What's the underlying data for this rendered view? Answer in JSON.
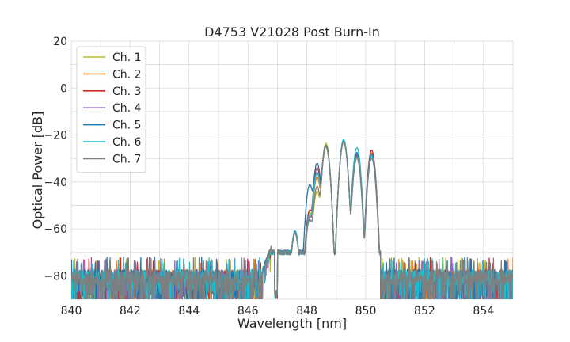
{
  "chart_data": {
    "type": "line",
    "title": "D4753 V21028 Post Burn-In",
    "xlabel": "Wavelength [nm]",
    "ylabel": "Optical Power [dB]",
    "xlim": [
      840,
      855
    ],
    "ylim": [
      -90,
      20
    ],
    "xticks": [
      840,
      842,
      844,
      846,
      848,
      850,
      852,
      854
    ],
    "yticks": [
      -80,
      -60,
      -40,
      -20,
      0,
      20
    ],
    "xtick_labels": [
      "840",
      "842",
      "844",
      "846",
      "848",
      "850",
      "852",
      "854"
    ],
    "ytick_labels": [
      "−80",
      "−60",
      "−40",
      "−20",
      "0",
      "20"
    ],
    "grid": true,
    "legend_position": "upper-left",
    "noise_floor_db": -80,
    "passband_nm": [
      846.8,
      850.5
    ],
    "series": [
      {
        "name": "Ch. 1",
        "color": "#bcbd22",
        "peaks": [
          {
            "x": 847.6,
            "y": -61
          },
          {
            "x": 848.1,
            "y": -53
          },
          {
            "x": 848.35,
            "y": -44
          },
          {
            "x": 848.65,
            "y": -23.5
          },
          {
            "x": 849.25,
            "y": -23
          },
          {
            "x": 849.7,
            "y": -30
          },
          {
            "x": 850.2,
            "y": -29
          }
        ]
      },
      {
        "name": "Ch. 2",
        "color": "#ff7f0e",
        "peaks": [
          {
            "x": 847.6,
            "y": -61.5
          },
          {
            "x": 848.1,
            "y": -54
          },
          {
            "x": 848.35,
            "y": -38
          },
          {
            "x": 848.65,
            "y": -24.5
          },
          {
            "x": 849.25,
            "y": -22.5
          },
          {
            "x": 849.7,
            "y": -29
          },
          {
            "x": 850.2,
            "y": -27.5
          }
        ]
      },
      {
        "name": "Ch. 3",
        "color": "#d62728",
        "peaks": [
          {
            "x": 847.6,
            "y": -61.5
          },
          {
            "x": 848.1,
            "y": -52
          },
          {
            "x": 848.35,
            "y": -34
          },
          {
            "x": 848.65,
            "y": -25
          },
          {
            "x": 849.25,
            "y": -22.5
          },
          {
            "x": 849.7,
            "y": -28.5
          },
          {
            "x": 850.2,
            "y": -26.5
          }
        ]
      },
      {
        "name": "Ch. 4",
        "color": "#9467bd",
        "peaks": [
          {
            "x": 847.6,
            "y": -62
          },
          {
            "x": 848.1,
            "y": -55
          },
          {
            "x": 848.35,
            "y": -36
          },
          {
            "x": 848.65,
            "y": -25
          },
          {
            "x": 849.25,
            "y": -23
          },
          {
            "x": 849.7,
            "y": -29.5
          },
          {
            "x": 850.2,
            "y": -29
          }
        ]
      },
      {
        "name": "Ch. 5",
        "color": "#1f77b4",
        "peaks": [
          {
            "x": 847.6,
            "y": -61
          },
          {
            "x": 848.1,
            "y": -41
          },
          {
            "x": 848.35,
            "y": -32
          },
          {
            "x": 848.65,
            "y": -24.5
          },
          {
            "x": 849.25,
            "y": -22.5
          },
          {
            "x": 849.7,
            "y": -27.5
          },
          {
            "x": 850.2,
            "y": -28
          }
        ]
      },
      {
        "name": "Ch. 6",
        "color": "#17becf",
        "peaks": [
          {
            "x": 847.6,
            "y": -61
          },
          {
            "x": 848.1,
            "y": -54
          },
          {
            "x": 848.35,
            "y": -36
          },
          {
            "x": 848.65,
            "y": -25
          },
          {
            "x": 849.25,
            "y": -22
          },
          {
            "x": 849.7,
            "y": -25.5
          },
          {
            "x": 850.2,
            "y": -29
          }
        ]
      },
      {
        "name": "Ch. 7",
        "color": "#7f7f7f",
        "peaks": [
          {
            "x": 847.6,
            "y": -62
          },
          {
            "x": 848.1,
            "y": -56
          },
          {
            "x": 848.35,
            "y": -42
          },
          {
            "x": 848.65,
            "y": -25
          },
          {
            "x": 849.25,
            "y": -23
          },
          {
            "x": 849.7,
            "y": -29
          },
          {
            "x": 850.2,
            "y": -30
          }
        ]
      }
    ]
  }
}
